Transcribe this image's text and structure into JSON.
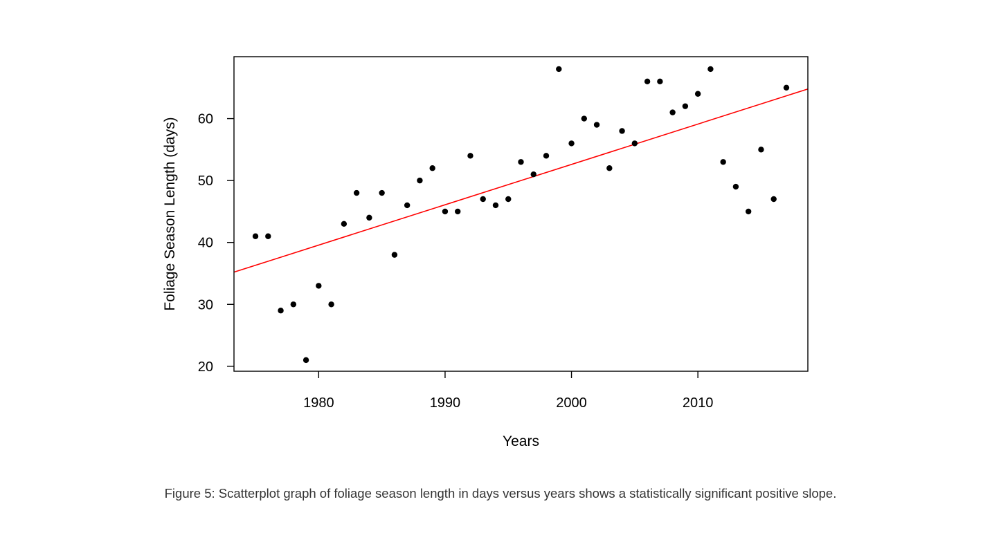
{
  "chart_data": {
    "type": "scatter",
    "title": "",
    "xlabel": "Years",
    "ylabel": "Foliage Season Length (days)",
    "xlim": [
      1973.3,
      2018.7
    ],
    "ylim": [
      19.2,
      70.0
    ],
    "x_ticks": [
      1980,
      1990,
      2000,
      2010
    ],
    "y_ticks": [
      20,
      30,
      40,
      50,
      60
    ],
    "grid": false,
    "colors": {
      "points": "#000000",
      "trend_line": "#ff0000",
      "frame": "#000000"
    },
    "series": [
      {
        "x": [
          1975,
          1976,
          1977,
          1978,
          1979,
          1980,
          1981,
          1982,
          1983,
          1984,
          1985,
          1986,
          1987,
          1988,
          1989,
          1990,
          1991,
          1992,
          1993,
          1994,
          1995,
          1996,
          1997,
          1998,
          1999,
          2000,
          2001,
          2002,
          2003,
          2004,
          2005,
          2006,
          2007,
          2008,
          2009,
          2010,
          2011,
          2012,
          2013,
          2014,
          2015,
          2016,
          2017
        ],
        "y": [
          41,
          41,
          29,
          30,
          21,
          33,
          30,
          43,
          48,
          44,
          48,
          38,
          46,
          50,
          52,
          45,
          45,
          54,
          47,
          46,
          47,
          53,
          51,
          54,
          68,
          56,
          60,
          59,
          52,
          58,
          56,
          66,
          66,
          61,
          62,
          64,
          68,
          53,
          49,
          45,
          55,
          47,
          65
        ]
      }
    ],
    "trend_line": {
      "slope": 0.6516,
      "intercept": -1250.6
    }
  },
  "caption": "Figure 5: Scatterplot graph of foliage season length in days versus years shows a statistically significant positive slope."
}
